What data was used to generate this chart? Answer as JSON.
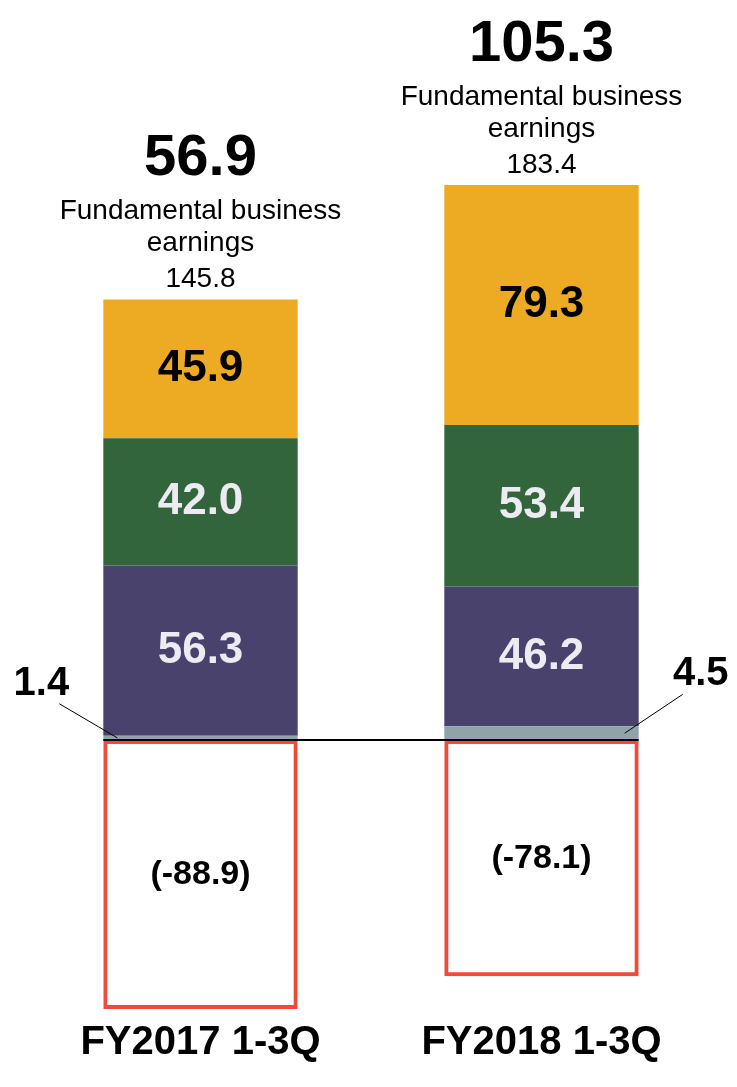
{
  "chart_data": {
    "type": "bar",
    "stacked": true,
    "categories": [
      "FY2017 1-3Q",
      "FY2018 1-3Q"
    ],
    "series": [
      {
        "color": "#8fa3a8",
        "values": [
          1.4,
          4.5
        ],
        "value_labels": [
          "1.4",
          "4.5"
        ]
      },
      {
        "color": "#48426d",
        "values": [
          56.3,
          46.2
        ],
        "value_labels": [
          "56.3",
          "46.2"
        ]
      },
      {
        "color": "#33653c",
        "values": [
          42.0,
          53.4
        ],
        "value_labels": [
          "42.0",
          "53.4"
        ]
      },
      {
        "color": "#edab23",
        "values": [
          45.9,
          79.3
        ],
        "value_labels": [
          "45.9",
          "79.3"
        ]
      },
      {
        "color": "#ef4a3a",
        "values": [
          -88.9,
          -78.1
        ],
        "value_labels": [
          "(-88.9)",
          "(-78.1)"
        ]
      }
    ],
    "annotations": [
      "56.9",
      "Fundamental business earnings",
      "145.8",
      "105.3",
      "Fundamental business earnings",
      "183.4"
    ],
    "ref_lines": [
      {
        "axis": "y",
        "value": 0,
        "color": "#000000"
      }
    ],
    "tick_labels": "x",
    "grid": false,
    "legend": false
  }
}
